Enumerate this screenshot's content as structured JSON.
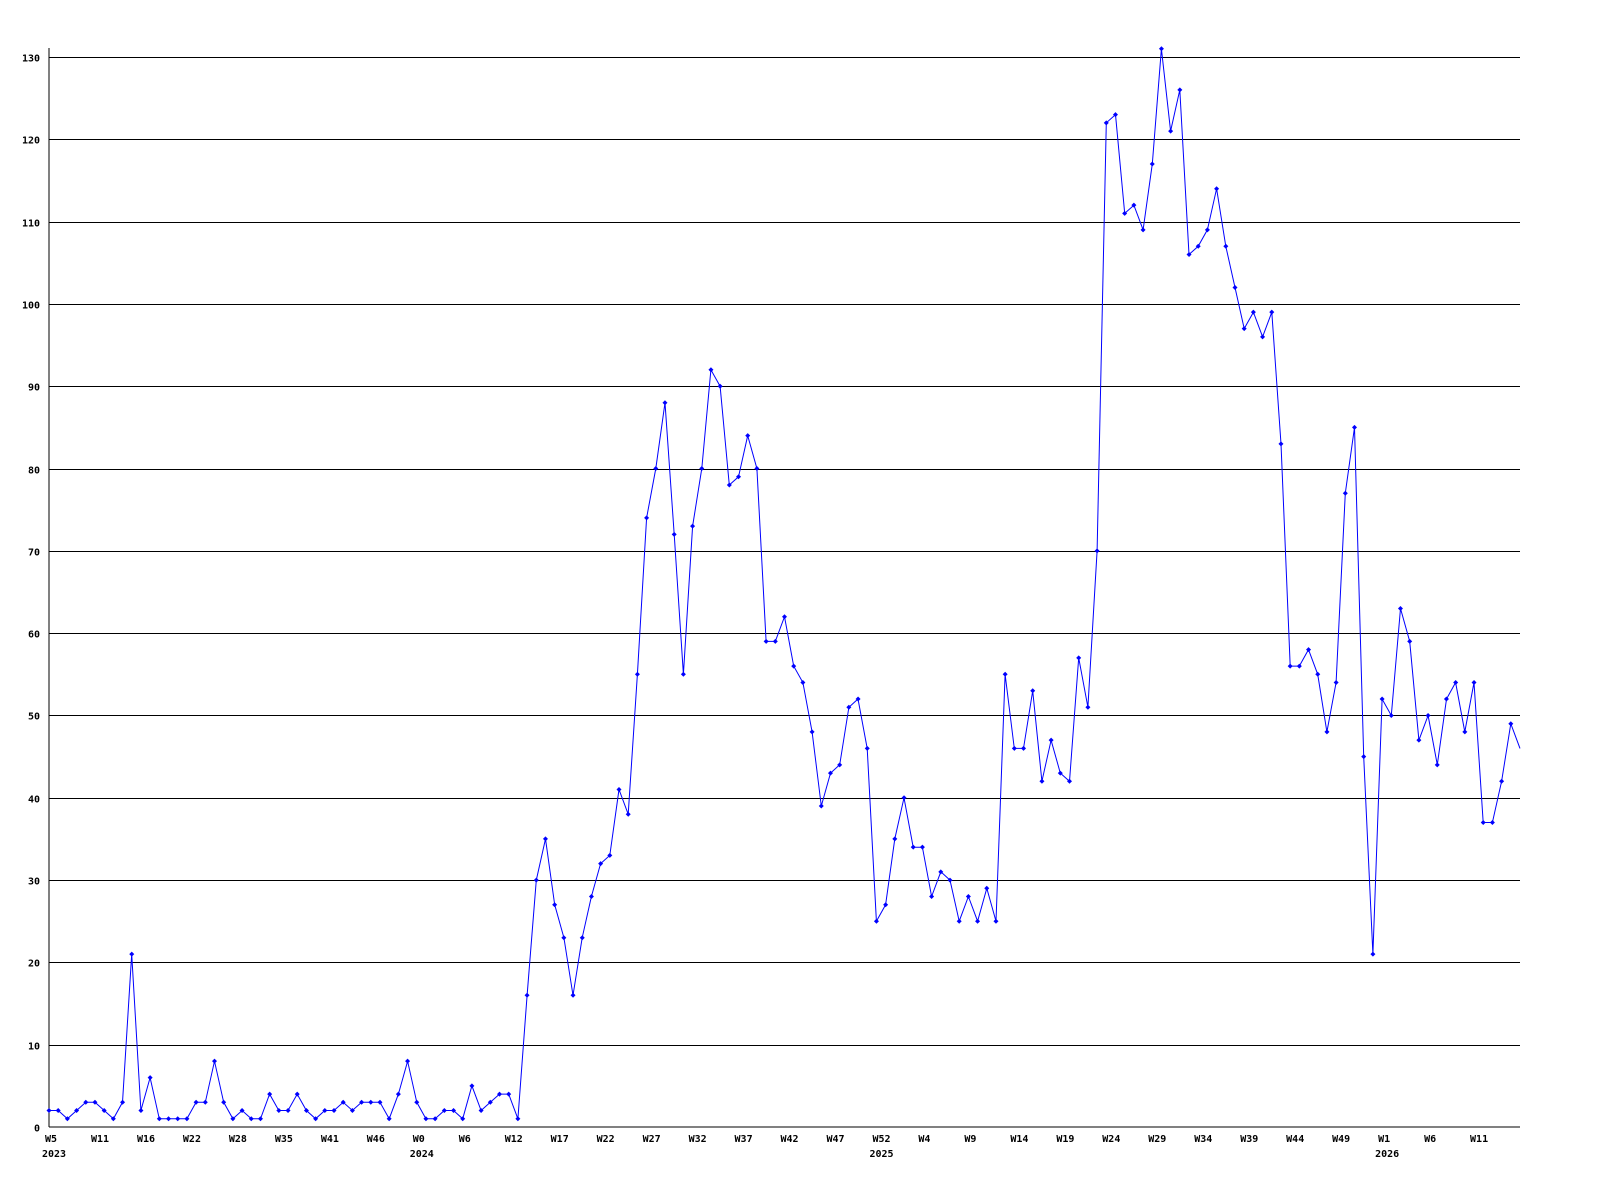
{
  "chart_data": {
    "type": "line",
    "title": "",
    "xlabel": "",
    "ylabel": "",
    "ylim": [
      0,
      130
    ],
    "yticks": [
      0,
      10,
      20,
      30,
      40,
      50,
      60,
      70,
      80,
      90,
      100,
      110,
      120,
      130
    ],
    "grid": true,
    "line_color": "#0000ff",
    "x_tick_every": 5,
    "x_tick_labels": [
      "W5",
      "W11",
      "W16",
      "W22",
      "W28",
      "W35",
      "W41",
      "W46",
      "W0",
      "W6",
      "W12",
      "W17",
      "W22",
      "W27",
      "W32",
      "W37",
      "W42",
      "W47",
      "W52",
      "W4",
      "W9",
      "W14",
      "W19",
      "W24",
      "W29",
      "W34",
      "W39",
      "W44",
      "W49",
      "W1",
      "W6",
      "W11"
    ],
    "year_labels": [
      {
        "label": "2023",
        "tick": 0
      },
      {
        "label": "2024",
        "tick": 8
      },
      {
        "label": "2025",
        "tick": 18
      },
      {
        "label": "2026",
        "tick": 29
      }
    ],
    "series": [
      {
        "values": [
          2,
          2,
          1,
          2,
          3,
          3,
          2,
          1,
          3,
          21,
          2,
          6,
          1,
          1,
          1,
          1,
          3,
          3,
          8,
          3,
          1,
          2,
          1,
          1,
          4,
          2,
          2,
          4,
          2,
          1,
          2,
          2,
          3,
          2,
          3,
          3,
          3,
          1,
          4,
          8,
          3,
          1,
          1,
          2,
          2,
          1,
          5,
          2,
          3,
          4,
          4,
          1,
          16,
          30,
          35,
          27,
          23,
          16,
          23,
          28,
          32,
          33,
          41,
          38,
          55,
          74,
          80,
          88,
          72,
          55,
          73,
          80,
          92,
          90,
          78,
          79,
          84,
          80,
          59,
          59,
          62,
          56,
          54,
          48,
          39,
          43,
          44,
          51,
          52,
          46,
          25,
          27,
          35,
          40,
          34,
          34,
          28,
          31,
          30,
          25,
          28,
          25,
          29,
          25,
          55,
          46,
          46,
          53,
          42,
          47,
          43,
          42,
          57,
          51,
          70,
          122,
          123,
          111,
          112,
          109,
          117,
          131,
          121,
          126,
          106,
          107,
          109,
          114,
          107,
          102,
          97,
          99,
          96,
          99,
          83,
          56,
          56,
          58,
          55,
          48,
          54,
          77,
          85,
          45,
          21,
          52,
          50,
          63,
          59,
          47,
          50,
          44,
          52,
          54,
          48,
          54,
          37,
          37,
          42,
          49,
          46
        ]
      }
    ]
  }
}
